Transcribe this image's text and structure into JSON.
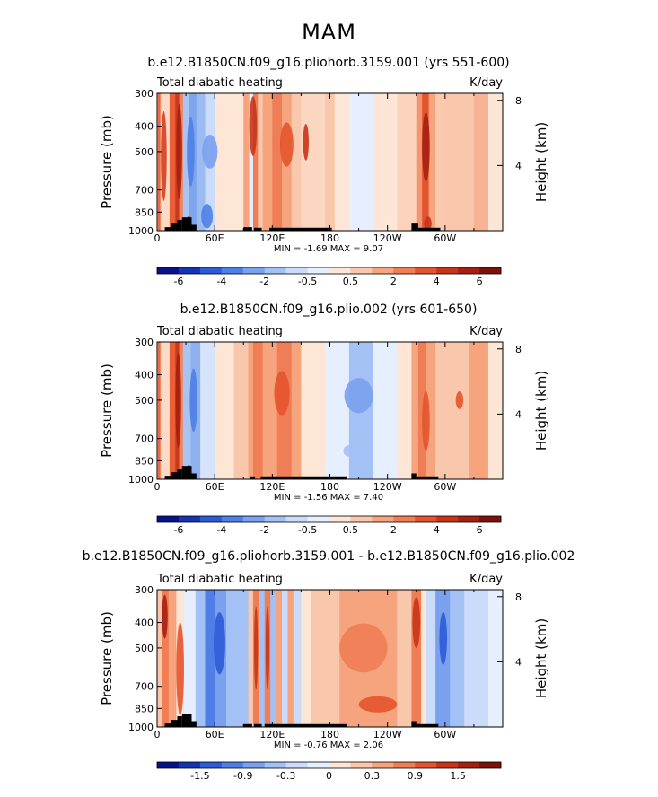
{
  "figure": {
    "title": "MAM"
  },
  "colors": {
    "frame": "#000000",
    "terrain": "#000000"
  },
  "chart_data": [
    {
      "type": "heatmap",
      "subtitle": "b.e12.B1850CN.f09_g16.pliohorb.3159.001 (yrs 551-600)",
      "left_label": "Total diabatic heating",
      "right_label": "K/day",
      "ylabel": "Pressure (mb)",
      "y2label": "Height (km)",
      "x_ticks": [
        "0",
        "60E",
        "120E",
        "180",
        "120W",
        "60W"
      ],
      "y_ticks": [
        "300",
        "400",
        "500",
        "700",
        "850",
        "1000"
      ],
      "height_ticks": [
        "8",
        "4"
      ],
      "stats": "MIN =   -1.69   MAX =   9.07",
      "colorbar_labels": [
        "-6",
        "-4",
        "-2",
        "-0.5",
        "0.5",
        "2",
        "4",
        "6"
      ],
      "colorbar_colors": [
        "#07128a",
        "#1434b4",
        "#2d5bd8",
        "#4f7fe6",
        "#7aa1ee",
        "#a4c1f5",
        "#cbdcfa",
        "#e6efff",
        "#fde6d6",
        "#f9c7ab",
        "#f5a47e",
        "#ef7d55",
        "#e3542e",
        "#c93418",
        "#a5200f",
        "#7c120a"
      ],
      "bands": [
        {
          "x0": 0,
          "x1": 1,
          "c": "#f7b393"
        },
        {
          "x0": 1,
          "x1": 3,
          "c": "#ea6941"
        },
        {
          "x0": 3,
          "x1": 4,
          "c": "#f29570"
        },
        {
          "x0": 4,
          "x1": 13,
          "c": "#fbdbc8"
        },
        {
          "x0": 13,
          "x1": 19,
          "c": "#eb5f36"
        },
        {
          "x0": 19,
          "x1": 23,
          "c": "#c83a1c"
        },
        {
          "x0": 23,
          "x1": 27,
          "c": "#f08564"
        },
        {
          "x0": 27,
          "x1": 33,
          "c": "#a8c4f3"
        },
        {
          "x0": 33,
          "x1": 41,
          "c": "#7ea4ee"
        },
        {
          "x0": 41,
          "x1": 50,
          "c": "#9cbbf2"
        },
        {
          "x0": 50,
          "x1": 60,
          "c": "#cbdcfa"
        },
        {
          "x0": 60,
          "x1": 90,
          "c": "#fde6d6"
        },
        {
          "x0": 90,
          "x1": 96,
          "c": "#f5a47e"
        },
        {
          "x0": 96,
          "x1": 100,
          "c": "#e6efff"
        },
        {
          "x0": 100,
          "x1": 105,
          "c": "#ef7d55"
        },
        {
          "x0": 105,
          "x1": 110,
          "c": "#f9c7ab"
        },
        {
          "x0": 110,
          "x1": 120,
          "c": "#f5a47e"
        },
        {
          "x0": 120,
          "x1": 130,
          "c": "#ef7d55"
        },
        {
          "x0": 130,
          "x1": 140,
          "c": "#f5a47e"
        },
        {
          "x0": 140,
          "x1": 150,
          "c": "#f9c7ab"
        },
        {
          "x0": 150,
          "x1": 175,
          "c": "#fbd7c2"
        },
        {
          "x0": 175,
          "x1": 185,
          "c": "#f9c7ab"
        },
        {
          "x0": 185,
          "x1": 200,
          "c": "#fde6d6"
        },
        {
          "x0": 200,
          "x1": 225,
          "c": "#e6efff"
        },
        {
          "x0": 225,
          "x1": 250,
          "c": "#fde6d6"
        },
        {
          "x0": 250,
          "x1": 270,
          "c": "#fbd2bb"
        },
        {
          "x0": 270,
          "x1": 276,
          "c": "#f29570"
        },
        {
          "x0": 276,
          "x1": 283,
          "c": "#e3542e"
        },
        {
          "x0": 283,
          "x1": 290,
          "c": "#f5a47e"
        },
        {
          "x0": 290,
          "x1": 300,
          "c": "#fbc9ae"
        },
        {
          "x0": 300,
          "x1": 330,
          "c": "#f9c7ab"
        },
        {
          "x0": 330,
          "x1": 345,
          "c": "#f7b393"
        },
        {
          "x0": 345,
          "x1": 360,
          "c": "#fde6d6"
        }
      ],
      "blobs": [
        {
          "x": 7,
          "p": 520,
          "rx": 3,
          "rp": 250,
          "c": "#d63d1f"
        },
        {
          "x": 23,
          "p": 500,
          "rx": 3,
          "rp": 260,
          "c": "#a5200f"
        },
        {
          "x": 33,
          "p": 930,
          "rx": 3,
          "rp": 50,
          "c": "#7c120a"
        },
        {
          "x": 35,
          "p": 500,
          "rx": 4,
          "rp": 180,
          "c": "#4f7fe6"
        },
        {
          "x": 55,
          "p": 500,
          "rx": 8,
          "rp": 80,
          "c": "#7aa1ee"
        },
        {
          "x": 52,
          "p": 880,
          "rx": 6,
          "rp": 100,
          "c": "#4f7fe6"
        },
        {
          "x": 100,
          "p": 400,
          "rx": 4,
          "rp": 120,
          "c": "#c93418"
        },
        {
          "x": 135,
          "p": 470,
          "rx": 7,
          "rp": 100,
          "c": "#e3542e"
        },
        {
          "x": 155,
          "p": 460,
          "rx": 3,
          "rp": 80,
          "c": "#c93418"
        },
        {
          "x": 280,
          "p": 480,
          "rx": 4,
          "rp": 170,
          "c": "#a5200f"
        },
        {
          "x": 282,
          "p": 940,
          "rx": 4,
          "rp": 60,
          "c": "#c93418"
        }
      ],
      "terrain": [
        {
          "x0": 8,
          "x1": 20,
          "p": 970
        },
        {
          "x0": 14,
          "x1": 24,
          "p": 940
        },
        {
          "x0": 21,
          "x1": 26,
          "p": 910
        },
        {
          "x0": 26,
          "x1": 36,
          "p": 890
        },
        {
          "x0": 36,
          "x1": 41,
          "p": 950
        },
        {
          "x0": 90,
          "x1": 99,
          "p": 970
        },
        {
          "x0": 101,
          "x1": 109,
          "p": 975
        },
        {
          "x0": 117,
          "x1": 182,
          "p": 975
        },
        {
          "x0": 265,
          "x1": 272,
          "p": 940
        },
        {
          "x0": 272,
          "x1": 295,
          "p": 975
        }
      ]
    },
    {
      "type": "heatmap",
      "subtitle": "b.e12.B1850CN.f09_g16.plio.002 (yrs 601-650)",
      "left_label": "Total diabatic heating",
      "right_label": "K/day",
      "ylabel": "Pressure (mb)",
      "y2label": "Height (km)",
      "x_ticks": [
        "0",
        "60E",
        "120E",
        "180",
        "120W",
        "60W"
      ],
      "y_ticks": [
        "300",
        "400",
        "500",
        "700",
        "850",
        "1000"
      ],
      "height_ticks": [
        "8",
        "4"
      ],
      "stats": "MIN =   -1.56   MAX =   7.40",
      "colorbar_labels": [
        "-6",
        "-4",
        "-2",
        "-0.5",
        "0.5",
        "2",
        "4",
        "6"
      ],
      "colorbar_colors": [
        "#07128a",
        "#1434b4",
        "#2d5bd8",
        "#4f7fe6",
        "#7aa1ee",
        "#a4c1f5",
        "#cbdcfa",
        "#e6efff",
        "#fde6d6",
        "#f9c7ab",
        "#f5a47e",
        "#ef7d55",
        "#e3542e",
        "#c93418",
        "#a5200f",
        "#7c120a"
      ],
      "bands": [
        {
          "x0": 0,
          "x1": 1,
          "c": "#f7b393"
        },
        {
          "x0": 1,
          "x1": 3,
          "c": "#ea6941"
        },
        {
          "x0": 3,
          "x1": 4,
          "c": "#f29570"
        },
        {
          "x0": 4,
          "x1": 13,
          "c": "#fbdbc8"
        },
        {
          "x0": 13,
          "x1": 19,
          "c": "#eb5f36"
        },
        {
          "x0": 19,
          "x1": 23,
          "c": "#c83a1c"
        },
        {
          "x0": 23,
          "x1": 27,
          "c": "#f08564"
        },
        {
          "x0": 27,
          "x1": 35,
          "c": "#a8c4f3"
        },
        {
          "x0": 35,
          "x1": 45,
          "c": "#8fb1f0"
        },
        {
          "x0": 45,
          "x1": 60,
          "c": "#d6e4fb"
        },
        {
          "x0": 60,
          "x1": 80,
          "c": "#fde6d6"
        },
        {
          "x0": 80,
          "x1": 95,
          "c": "#f9c7ab"
        },
        {
          "x0": 95,
          "x1": 100,
          "c": "#f5a47e"
        },
        {
          "x0": 100,
          "x1": 110,
          "c": "#ef7d55"
        },
        {
          "x0": 110,
          "x1": 125,
          "c": "#f5a47e"
        },
        {
          "x0": 125,
          "x1": 140,
          "c": "#ef7d55"
        },
        {
          "x0": 140,
          "x1": 150,
          "c": "#f5a47e"
        },
        {
          "x0": 150,
          "x1": 175,
          "c": "#fde6d6"
        },
        {
          "x0": 175,
          "x1": 200,
          "c": "#e6efff"
        },
        {
          "x0": 200,
          "x1": 225,
          "c": "#a4c1f5"
        },
        {
          "x0": 225,
          "x1": 250,
          "c": "#e6efff"
        },
        {
          "x0": 250,
          "x1": 265,
          "c": "#fde6d6"
        },
        {
          "x0": 265,
          "x1": 272,
          "c": "#f5a47e"
        },
        {
          "x0": 272,
          "x1": 280,
          "c": "#ef7d55"
        },
        {
          "x0": 280,
          "x1": 290,
          "c": "#f5a47e"
        },
        {
          "x0": 290,
          "x1": 325,
          "c": "#f9c7ab"
        },
        {
          "x0": 325,
          "x1": 345,
          "c": "#f5a47e"
        },
        {
          "x0": 345,
          "x1": 360,
          "c": "#fde6d6"
        }
      ],
      "blobs": [
        {
          "x": 22,
          "p": 500,
          "rx": 3,
          "rp": 260,
          "c": "#a5200f"
        },
        {
          "x": 33,
          "p": 930,
          "rx": 3,
          "rp": 50,
          "c": "#7c120a"
        },
        {
          "x": 38,
          "p": 500,
          "rx": 4,
          "rp": 160,
          "c": "#4f7fe6"
        },
        {
          "x": 130,
          "p": 470,
          "rx": 8,
          "rp": 100,
          "c": "#e3542e"
        },
        {
          "x": 210,
          "p": 480,
          "rx": 15,
          "rp": 80,
          "c": "#7aa1ee"
        },
        {
          "x": 200,
          "p": 780,
          "rx": 6,
          "rp": 40,
          "c": "#a4c1f5"
        },
        {
          "x": 315,
          "p": 500,
          "rx": 4,
          "rp": 40,
          "c": "#e3542e"
        },
        {
          "x": 280,
          "p": 600,
          "rx": 4,
          "rp": 180,
          "c": "#e3542e"
        }
      ],
      "terrain": [
        {
          "x0": 8,
          "x1": 20,
          "p": 970
        },
        {
          "x0": 14,
          "x1": 24,
          "p": 940
        },
        {
          "x0": 21,
          "x1": 26,
          "p": 910
        },
        {
          "x0": 26,
          "x1": 36,
          "p": 890
        },
        {
          "x0": 36,
          "x1": 41,
          "p": 950
        },
        {
          "x0": 97,
          "x1": 102,
          "p": 975
        },
        {
          "x0": 108,
          "x1": 198,
          "p": 975
        },
        {
          "x0": 265,
          "x1": 270,
          "p": 950
        },
        {
          "x0": 270,
          "x1": 293,
          "p": 975
        }
      ]
    },
    {
      "type": "heatmap",
      "subtitle": "b.e12.B1850CN.f09_g16.pliohorb.3159.001 - b.e12.B1850CN.f09_g16.plio.002",
      "left_label": "Total diabatic heating",
      "right_label": "K/day",
      "ylabel": "Pressure (mb)",
      "y2label": "Height (km)",
      "x_ticks": [
        "0",
        "60E",
        "120E",
        "180",
        "120W",
        "60W"
      ],
      "y_ticks": [
        "300",
        "400",
        "500",
        "700",
        "850",
        "1000"
      ],
      "height_ticks": [
        "8",
        "4"
      ],
      "stats": "MIN =   -0.76   MAX =   2.06",
      "colorbar_labels": [
        "-1.5",
        "-0.9",
        "-0.3",
        "0",
        "0.3",
        "0.9",
        "1.5"
      ],
      "colorbar_colors": [
        "#07128a",
        "#1434b4",
        "#2d5bd8",
        "#4f7fe6",
        "#7aa1ee",
        "#a4c1f5",
        "#cbdcfa",
        "#e6efff",
        "#fde6d6",
        "#f9c7ab",
        "#f5a47e",
        "#ef7d55",
        "#e3542e",
        "#c93418",
        "#a5200f",
        "#7c120a"
      ],
      "bands": [
        {
          "x0": 0,
          "x1": 5,
          "c": "#f9c7ab"
        },
        {
          "x0": 5,
          "x1": 12,
          "c": "#ef7d55"
        },
        {
          "x0": 12,
          "x1": 20,
          "c": "#f5a47e"
        },
        {
          "x0": 20,
          "x1": 28,
          "c": "#fde6d6"
        },
        {
          "x0": 28,
          "x1": 40,
          "c": "#e6efff"
        },
        {
          "x0": 40,
          "x1": 50,
          "c": "#a4c1f5"
        },
        {
          "x0": 50,
          "x1": 60,
          "c": "#4f7fe6"
        },
        {
          "x0": 60,
          "x1": 72,
          "c": "#7aa1ee"
        },
        {
          "x0": 72,
          "x1": 95,
          "c": "#a4c1f5"
        },
        {
          "x0": 95,
          "x1": 100,
          "c": "#f9c7ab"
        },
        {
          "x0": 100,
          "x1": 106,
          "c": "#ef7d55"
        },
        {
          "x0": 106,
          "x1": 112,
          "c": "#a4c1f5"
        },
        {
          "x0": 112,
          "x1": 118,
          "c": "#ef7d55"
        },
        {
          "x0": 118,
          "x1": 124,
          "c": "#a4c1f5"
        },
        {
          "x0": 124,
          "x1": 130,
          "c": "#f5a47e"
        },
        {
          "x0": 130,
          "x1": 136,
          "c": "#cbdcfa"
        },
        {
          "x0": 136,
          "x1": 142,
          "c": "#f5a47e"
        },
        {
          "x0": 142,
          "x1": 150,
          "c": "#cbdcfa"
        },
        {
          "x0": 150,
          "x1": 160,
          "c": "#fde6d6"
        },
        {
          "x0": 160,
          "x1": 190,
          "c": "#f9c7ab"
        },
        {
          "x0": 190,
          "x1": 250,
          "c": "#f5a47e"
        },
        {
          "x0": 250,
          "x1": 265,
          "c": "#f9c7ab"
        },
        {
          "x0": 265,
          "x1": 275,
          "c": "#ef7d55"
        },
        {
          "x0": 275,
          "x1": 280,
          "c": "#fde6d6"
        },
        {
          "x0": 280,
          "x1": 290,
          "c": "#cbdcfa"
        },
        {
          "x0": 290,
          "x1": 305,
          "c": "#7aa1ee"
        },
        {
          "x0": 305,
          "x1": 320,
          "c": "#a4c1f5"
        },
        {
          "x0": 320,
          "x1": 345,
          "c": "#cbdcfa"
        },
        {
          "x0": 345,
          "x1": 360,
          "c": "#e6efff"
        }
      ],
      "blobs": [
        {
          "x": 8,
          "p": 380,
          "rx": 3,
          "rp": 80,
          "c": "#a5200f"
        },
        {
          "x": 24,
          "p": 600,
          "rx": 4,
          "rp": 300,
          "c": "#e3542e"
        },
        {
          "x": 65,
          "p": 480,
          "rx": 6,
          "rp": 150,
          "c": "#2d5bd8"
        },
        {
          "x": 103,
          "p": 500,
          "rx": 2,
          "rp": 220,
          "c": "#c93418"
        },
        {
          "x": 115,
          "p": 500,
          "rx": 2,
          "rp": 220,
          "c": "#c93418"
        },
        {
          "x": 230,
          "p": 820,
          "rx": 20,
          "rp": 60,
          "c": "#e3542e"
        },
        {
          "x": 270,
          "p": 400,
          "rx": 4,
          "rp": 100,
          "c": "#c93418"
        },
        {
          "x": 298,
          "p": 460,
          "rx": 4,
          "rp": 120,
          "c": "#2d5bd8"
        },
        {
          "x": 215,
          "p": 500,
          "rx": 25,
          "rp": 120,
          "c": "#ef7d55"
        }
      ],
      "terrain": [
        {
          "x0": 8,
          "x1": 20,
          "p": 970
        },
        {
          "x0": 14,
          "x1": 24,
          "p": 940
        },
        {
          "x0": 21,
          "x1": 26,
          "p": 910
        },
        {
          "x0": 26,
          "x1": 36,
          "p": 890
        },
        {
          "x0": 36,
          "x1": 41,
          "p": 950
        },
        {
          "x0": 90,
          "x1": 99,
          "p": 975
        },
        {
          "x0": 101,
          "x1": 109,
          "p": 975
        },
        {
          "x0": 112,
          "x1": 198,
          "p": 975
        },
        {
          "x0": 265,
          "x1": 270,
          "p": 950
        },
        {
          "x0": 270,
          "x1": 293,
          "p": 975
        }
      ]
    }
  ]
}
